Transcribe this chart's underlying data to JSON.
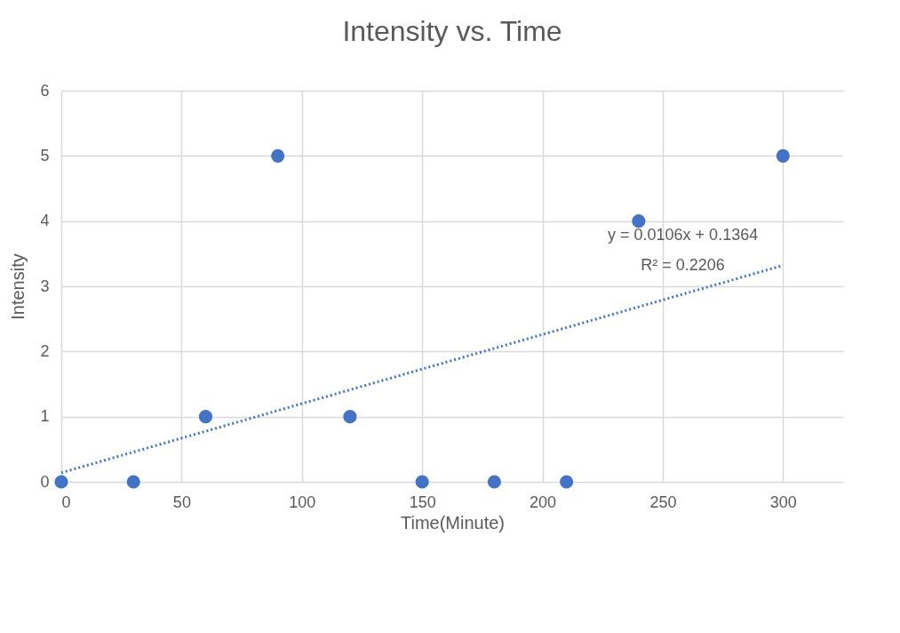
{
  "chart_data": {
    "type": "scatter",
    "title": "Intensity vs. Time",
    "xlabel": "Time(Minute)",
    "ylabel": "Intensity",
    "xlim": [
      0,
      325
    ],
    "xticks": [
      0,
      50,
      100,
      150,
      200,
      250,
      300
    ],
    "ylim": [
      0,
      6
    ],
    "yticks": [
      0,
      1,
      2,
      3,
      4,
      5,
      6
    ],
    "grid": true,
    "series": [
      {
        "color": "#4472c4",
        "marker": "circle",
        "x": [
          0,
          30,
          60,
          90,
          120,
          150,
          180,
          210,
          240,
          300
        ],
        "values": [
          0,
          0,
          1,
          5,
          1,
          0,
          0,
          0,
          4,
          5
        ]
      },
      {
        "type": "line",
        "line_style": "dotted",
        "color": "#4472c4",
        "x": [
          0,
          300
        ],
        "values": [
          0.14,
          3.32
        ]
      }
    ],
    "annotations": [
      "y = 0.0106x + 0.1364",
      "R² = 0.2206"
    ]
  }
}
